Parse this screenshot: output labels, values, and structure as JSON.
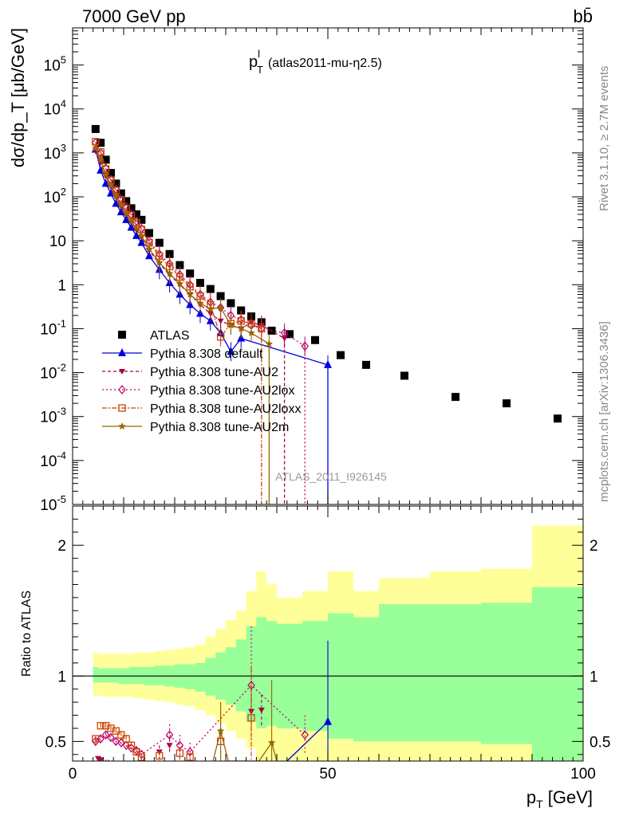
{
  "header": {
    "left_label": "7000 GeV pp",
    "right_label": "bb̄",
    "side_label_top": "Rivet 3.1.10, ≥ 2.7M events",
    "side_label_bottom": "mcplots.cern.ch [arXiv:1306.3436]",
    "watermark": "ATLAS_2011_I926145"
  },
  "chart_data": [
    {
      "type": "scatter",
      "panel": "main",
      "title_main": "p",
      "title_sup": "l",
      "title_sub": "T",
      "title_rest": "(atlas2011-mu-η2.5)",
      "ylabel": "dσ/dp_T [μb/GeV]",
      "yscale": "log",
      "xlim": [
        0,
        100
      ],
      "ylim": [
        1e-05,
        700000
      ],
      "ytick_labels": [
        "10^-5",
        "10^-4",
        "10^-3",
        "10^-2",
        "10^-1",
        "1",
        "10",
        "10^2",
        "10^3",
        "10^4",
        "10^5"
      ],
      "legend_position": "middle-left",
      "series": [
        {
          "name": "ATLAS",
          "color": "#000000",
          "x": [
            4.5,
            5.5,
            6.5,
            7.5,
            8.5,
            9.5,
            10.5,
            11.5,
            12.5,
            13.5,
            15,
            17,
            19,
            21,
            23,
            25,
            27,
            29,
            31,
            33,
            35,
            37,
            39,
            42.5,
            47.5,
            52.5,
            57.5,
            65,
            75,
            85,
            95
          ],
          "y": [
            3500,
            1700,
            700,
            350,
            200,
            120,
            80,
            55,
            40,
            30,
            15,
            9,
            5,
            2.8,
            1.8,
            1.1,
            0.8,
            0.55,
            0.38,
            0.26,
            0.19,
            0.14,
            0.09,
            0.075,
            0.055,
            0.025,
            0.015,
            0.0085,
            0.0028,
            0.002,
            0.0009
          ]
        },
        {
          "name": "Pythia 8.308 default",
          "color": "#0000dd",
          "x": [
            4.5,
            5.5,
            6.5,
            7.5,
            8.5,
            9.5,
            10.5,
            11.5,
            12.5,
            13.5,
            15,
            17,
            19,
            21,
            23,
            25,
            27,
            29,
            31,
            33,
            50
          ],
          "y": [
            1200,
            400,
            200,
            120,
            70,
            45,
            30,
            20,
            13,
            9,
            4.5,
            2.2,
            1.1,
            0.6,
            0.35,
            0.22,
            0.15,
            0.08,
            0.03,
            0.06,
            0.015
          ]
        },
        {
          "name": "Pythia 8.308 tune-AU2",
          "color": "#aa0044",
          "x": [
            4.5,
            5.5,
            6.5,
            7.5,
            8.5,
            9.5,
            10.5,
            11.5,
            12.5,
            13.5,
            15,
            17,
            19,
            21,
            23,
            25,
            27,
            29,
            31,
            33,
            35,
            37,
            41.5
          ],
          "y": [
            1100,
            600,
            300,
            170,
            100,
            60,
            40,
            27,
            18,
            12,
            6,
            3,
            1.7,
            1,
            0.6,
            0.35,
            0.22,
            0.15,
            0.12,
            0.1,
            0.14,
            0.12,
            0.06
          ]
        },
        {
          "name": "Pythia 8.308 tune-AU2lox",
          "color": "#bb0066",
          "x": [
            4.5,
            5.5,
            6.5,
            7.5,
            8.5,
            9.5,
            10.5,
            11.5,
            12.5,
            13.5,
            15,
            17,
            19,
            21,
            23,
            25,
            27,
            29,
            31,
            33,
            35,
            37,
            41.5,
            45.5
          ],
          "y": [
            1700,
            1000,
            450,
            250,
            150,
            90,
            60,
            40,
            28,
            19,
            10,
            5,
            3,
            1.7,
            1,
            0.6,
            0.4,
            0.3,
            0.2,
            0.16,
            0.12,
            0.1,
            0.08,
            0.04
          ]
        },
        {
          "name": "Pythia 8.308 tune-AU2loxx",
          "color": "#cc4400",
          "x": [
            4.5,
            5.5,
            6.5,
            7.5,
            8.5,
            9.5,
            10.5,
            11.5,
            12.5,
            13.5,
            15,
            17,
            19,
            21,
            23,
            25,
            27,
            29,
            31,
            33,
            35,
            37
          ],
          "y": [
            1800,
            1050,
            430,
            240,
            140,
            85,
            55,
            38,
            26,
            18,
            9,
            4.5,
            2.6,
            1.5,
            0.9,
            0.55,
            0.35,
            0.065,
            0.13,
            0.15,
            0.13,
            0.1
          ]
        },
        {
          "name": "Pythia 8.308 tune-AU2m",
          "color": "#996600",
          "x": [
            4.5,
            5.5,
            6.5,
            7.5,
            8.5,
            9.5,
            10.5,
            11.5,
            12.5,
            13.5,
            15,
            17,
            19,
            21,
            23,
            25,
            27,
            29,
            31,
            33,
            35,
            38.5
          ],
          "y": [
            1300,
            700,
            320,
            180,
            105,
            65,
            42,
            28,
            19,
            13,
            6.5,
            3.2,
            1.8,
            1.05,
            0.6,
            0.38,
            0.28,
            0.3,
            0.12,
            0.1,
            0.08,
            0.045
          ]
        }
      ]
    },
    {
      "type": "scatter",
      "panel": "ratio",
      "ylabel": "Ratio to ATLAS",
      "xlabel": "p_T [GeV]",
      "xlim": [
        0,
        100
      ],
      "ylim": [
        0.35,
        2.3
      ],
      "yticks": [
        0.5,
        1,
        2
      ],
      "xticks": [
        0,
        50,
        100
      ],
      "ytick_labels": [
        "0.5",
        "1",
        "2"
      ],
      "xtick_labels": [
        "0",
        "50",
        "100"
      ],
      "bands": {
        "edges": [
          4,
          5,
          6,
          7,
          8,
          9,
          10,
          11,
          12,
          13,
          14,
          16,
          18,
          20,
          22,
          24,
          26,
          28,
          30,
          32,
          34,
          36,
          38,
          40,
          45,
          50,
          55,
          60,
          70,
          80,
          90,
          100
        ],
        "green_up": [
          1.07,
          1.06,
          1.06,
          1.06,
          1.06,
          1.06,
          1.06,
          1.07,
          1.07,
          1.07,
          1.07,
          1.08,
          1.08,
          1.09,
          1.09,
          1.1,
          1.14,
          1.18,
          1.22,
          1.28,
          1.38,
          1.45,
          1.42,
          1.4,
          1.42,
          1.48,
          1.45,
          1.55,
          1.55,
          1.56,
          1.68
        ],
        "green_dn": [
          0.95,
          0.95,
          0.95,
          0.95,
          0.95,
          0.94,
          0.94,
          0.94,
          0.94,
          0.94,
          0.93,
          0.93,
          0.92,
          0.91,
          0.9,
          0.88,
          0.85,
          0.82,
          0.78,
          0.73,
          0.65,
          0.6,
          0.62,
          0.6,
          0.58,
          0.52,
          0.5,
          0.5,
          0.5,
          0.48,
          0.35
        ],
        "yellow_up": [
          1.18,
          1.17,
          1.17,
          1.17,
          1.17,
          1.17,
          1.17,
          1.17,
          1.18,
          1.18,
          1.18,
          1.19,
          1.2,
          1.21,
          1.22,
          1.24,
          1.3,
          1.36,
          1.43,
          1.5,
          1.65,
          1.8,
          1.7,
          1.6,
          1.65,
          1.8,
          1.65,
          1.75,
          1.8,
          1.82,
          2.15
        ],
        "yellow_dn": [
          0.85,
          0.85,
          0.84,
          0.84,
          0.84,
          0.84,
          0.84,
          0.84,
          0.83,
          0.83,
          0.82,
          0.81,
          0.8,
          0.78,
          0.77,
          0.74,
          0.7,
          0.64,
          0.58,
          0.52,
          0.45,
          0.35,
          0.35,
          0.35,
          0.35,
          0.35,
          0.35,
          0.35,
          0.35,
          0.35,
          0.35
        ]
      },
      "series": [
        {
          "name": "Pythia 8.308 default",
          "color": "#0000dd",
          "x": [
            42,
            50
          ],
          "y": [
            0.35,
            0.65
          ],
          "err": [
            0,
            0.62
          ]
        },
        {
          "name": "Pythia 8.308 tune-AU2",
          "color": "#aa0044",
          "x": [
            5,
            5.5,
            6,
            6.5,
            7,
            17,
            19,
            35,
            37
          ],
          "y": [
            0.37,
            0.36,
            0.35,
            0.35,
            0.35,
            0.42,
            0.47,
            0.73,
            0.74
          ],
          "err": [
            0.01,
            0.01,
            0.01,
            0.01,
            0.01,
            0.05,
            0.06,
            0.18,
            0.12
          ]
        },
        {
          "name": "Pythia 8.308 tune-AU2lox",
          "color": "#bb0066",
          "x": [
            4.5,
            5.5,
            6.5,
            7.5,
            8.5,
            9.5,
            10.5,
            11.5,
            12.5,
            13.5,
            19,
            21,
            23,
            35,
            45.5
          ],
          "y": [
            0.5,
            0.52,
            0.55,
            0.53,
            0.5,
            0.49,
            0.47,
            0.45,
            0.43,
            0.4,
            0.55,
            0.47,
            0.42,
            0.93,
            0.55
          ],
          "err": [
            0.02,
            0.02,
            0.02,
            0.02,
            0.02,
            0.03,
            0.03,
            0.03,
            0.03,
            0.03,
            0.08,
            0.08,
            0.07,
            0.45,
            0.15
          ]
        },
        {
          "name": "Pythia 8.308 tune-AU2loxx",
          "color": "#cc4400",
          "x": [
            4.5,
            5.5,
            6.5,
            7.5,
            8.5,
            9.5,
            10.5,
            11.5,
            12.5,
            13.5,
            17,
            21,
            23,
            29,
            35
          ],
          "y": [
            0.52,
            0.62,
            0.62,
            0.6,
            0.58,
            0.55,
            0.52,
            0.47,
            0.42,
            0.38,
            0.39,
            0.41,
            0.38,
            0.5,
            0.68
          ],
          "err": [
            0.02,
            0.02,
            0.02,
            0.02,
            0.02,
            0.03,
            0.03,
            0.03,
            0.03,
            0.03,
            0.04,
            0.05,
            0.05,
            0.3,
            0.4
          ]
        },
        {
          "name": "Pythia 8.308 tune-AU2m",
          "color": "#996600",
          "x": [
            27.5,
            29,
            30.5,
            36.5,
            39,
            40
          ],
          "y": [
            0.35,
            0.58,
            0.35,
            0.35,
            0.49,
            0.35
          ],
          "err": [
            0,
            0.22,
            0,
            0,
            0.48,
            0
          ]
        }
      ]
    }
  ]
}
